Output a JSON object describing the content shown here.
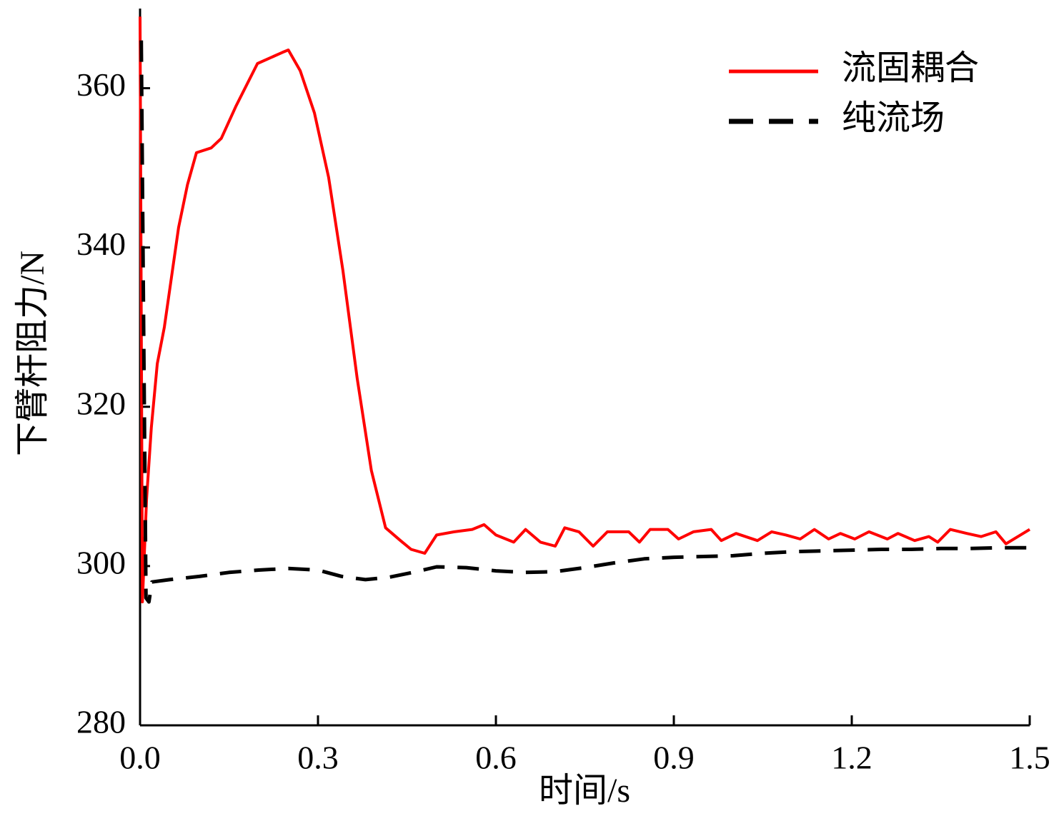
{
  "chart_data": {
    "type": "line",
    "xlabel": "时间/s",
    "ylabel": "下臂杆阻力/N",
    "xlim": [
      0,
      1.5
    ],
    "ylim": [
      280,
      370
    ],
    "xticks": [
      {
        "value": 0,
        "label": "0.0"
      },
      0.3,
      0.6,
      0.9,
      1.2,
      1.5
    ],
    "yticks": [
      280,
      300,
      320,
      340,
      360
    ],
    "legend": "upper right",
    "series": [
      {
        "name": "流固耦合",
        "color": "#ff0000",
        "line_style": "solid",
        "x": [
          0,
          0.004,
          0.011,
          0.019,
          0.029,
          0.041,
          0.065,
          0.08,
          0.095,
          0.12,
          0.137,
          0.162,
          0.198,
          0.24,
          0.25,
          0.27,
          0.294,
          0.318,
          0.342,
          0.366,
          0.39,
          0.414,
          0.439,
          0.457,
          0.48,
          0.5,
          0.53,
          0.56,
          0.58,
          0.6,
          0.63,
          0.65,
          0.675,
          0.7,
          0.716,
          0.74,
          0.764,
          0.788,
          0.824,
          0.842,
          0.86,
          0.89,
          0.908,
          0.933,
          0.963,
          0.98,
          1.005,
          1.041,
          1.065,
          1.089,
          1.113,
          1.137,
          1.161,
          1.181,
          1.205,
          1.229,
          1.26,
          1.278,
          1.306,
          1.33,
          1.345,
          1.366,
          1.394,
          1.418,
          1.443,
          1.46,
          1.5
        ],
        "values": [
          369,
          295.5,
          308.4,
          317.4,
          325.4,
          330,
          342.5,
          347.9,
          351.9,
          352.5,
          353.7,
          357.8,
          363.1,
          364.5,
          364.8,
          362.2,
          356.9,
          348.8,
          337.1,
          323.6,
          312,
          304.8,
          303.2,
          302.1,
          301.6,
          303.9,
          304.3,
          304.6,
          305.2,
          303.9,
          303,
          304.6,
          303,
          302.5,
          304.8,
          304.3,
          302.5,
          304.3,
          304.3,
          303,
          304.6,
          304.6,
          303.4,
          304.3,
          304.6,
          303.2,
          304.1,
          303.2,
          304.3,
          303.9,
          303.4,
          304.6,
          303.4,
          304.1,
          303.4,
          304.3,
          303.4,
          304.1,
          303.2,
          303.7,
          303,
          304.6,
          304.1,
          303.7,
          304.3,
          302.8,
          304.6
        ]
      },
      {
        "name": "纯流场",
        "color": "#000000",
        "line_style": "dashed",
        "x": [
          0.002,
          0.006,
          0.01,
          0.015,
          0.02,
          0.05,
          0.1,
          0.15,
          0.2,
          0.25,
          0.3,
          0.34,
          0.38,
          0.42,
          0.46,
          0.5,
          0.55,
          0.6,
          0.65,
          0.7,
          0.75,
          0.8,
          0.85,
          0.9,
          0.95,
          1.0,
          1.05,
          1.1,
          1.15,
          1.2,
          1.25,
          1.3,
          1.35,
          1.4,
          1.45,
          1.5
        ],
        "values": [
          366,
          330,
          296,
          295.5,
          298,
          298.3,
          298.7,
          299.2,
          299.5,
          299.7,
          299.5,
          298.7,
          298.3,
          298.6,
          299.2,
          299.9,
          299.8,
          299.4,
          299.2,
          299.3,
          299.8,
          300.4,
          300.9,
          301.1,
          301.2,
          301.3,
          301.6,
          301.8,
          301.9,
          302,
          302.1,
          302.1,
          302.2,
          302.2,
          302.3,
          302.3
        ]
      }
    ]
  }
}
